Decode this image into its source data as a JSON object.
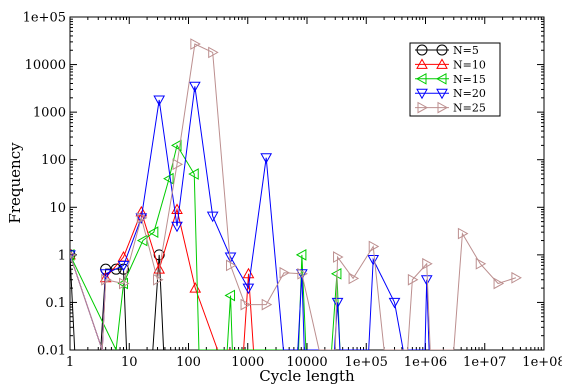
{
  "chart_data": {
    "type": "line",
    "xlabel": "Cycle length",
    "ylabel": "Frequency",
    "x_scale": "log",
    "y_scale": "log",
    "xlim": [
      1,
      100000000
    ],
    "ylim": [
      0.01,
      100000
    ],
    "x_tick_labels": [
      "1",
      "10",
      "100",
      "1000",
      "10000",
      "1e+05",
      "1e+06",
      "1e+07",
      "1e+08"
    ],
    "y_tick_labels": [
      "0.01",
      "0.1",
      "1",
      "10",
      "100",
      "1000",
      "10000",
      "1e+05"
    ],
    "legend_position": "top-right",
    "grid": false,
    "series": [
      {
        "name": "N=5",
        "color": "#000000",
        "marker": "circle",
        "points": [
          [
            1,
            1
          ],
          [
            1.2,
            0.01
          ],
          [
            3.3,
            0.01
          ],
          [
            4,
            0.5
          ],
          [
            6,
            0.5
          ],
          [
            8,
            0.5
          ],
          [
            9,
            0.01
          ],
          [
            25,
            0.01
          ],
          [
            32,
            1
          ],
          [
            38,
            0.01
          ]
        ]
      },
      {
        "name": "N=10",
        "color": "#ff0000",
        "marker": "triangle-up",
        "points": [
          [
            1,
            1
          ],
          [
            3.5,
            0.01
          ],
          [
            4,
            0.33
          ],
          [
            8,
            0.9
          ],
          [
            16,
            8
          ],
          [
            32,
            0.5
          ],
          [
            64,
            9
          ],
          [
            130,
            0.2
          ],
          [
            310,
            0.01
          ],
          [
            850,
            0.01
          ],
          [
            1030,
            0.4
          ],
          [
            1250,
            0.01
          ]
        ]
      },
      {
        "name": "N=15",
        "color": "#00cc00",
        "marker": "triangle-left",
        "points": [
          [
            1,
            1
          ],
          [
            6,
            0.01
          ],
          [
            8,
            0.25
          ],
          [
            17,
            2
          ],
          [
            26,
            3
          ],
          [
            47,
            40
          ],
          [
            64,
            200
          ],
          [
            125,
            50
          ],
          [
            150,
            0.01
          ],
          [
            450,
            0.01
          ],
          [
            512,
            0.14
          ],
          [
            550,
            0.01
          ],
          [
            7200,
            0.01
          ],
          [
            8200,
            1
          ],
          [
            9600,
            0.01
          ],
          [
            26000,
            0.01
          ],
          [
            32000,
            0.4
          ],
          [
            36000,
            0.01
          ]
        ]
      },
      {
        "name": "N=20",
        "color": "#0000ff",
        "marker": "triangle-down",
        "points": [
          [
            1,
            1
          ],
          [
            3.5,
            0.01
          ],
          [
            4,
            0.4
          ],
          [
            8,
            0.6
          ],
          [
            16,
            6
          ],
          [
            32,
            1800
          ],
          [
            64,
            4
          ],
          [
            128,
            3500
          ],
          [
            256,
            6.5
          ],
          [
            512,
            0.9
          ],
          [
            1024,
            0.2
          ],
          [
            2048,
            110
          ],
          [
            4000,
            0.01
          ],
          [
            7000,
            0.01
          ],
          [
            8192,
            0.4
          ],
          [
            9000,
            0.01
          ],
          [
            29000,
            0.01
          ],
          [
            32768,
            0.1
          ],
          [
            36000,
            0.01
          ],
          [
            110000,
            0.01
          ],
          [
            131072,
            0.8
          ],
          [
            300000,
            0.1
          ],
          [
            420000,
            0.01
          ],
          [
            980000,
            0.01
          ],
          [
            1048576,
            0.3
          ],
          [
            1150000,
            0.01
          ]
        ]
      },
      {
        "name": "N=25",
        "color": "#bc8f8f",
        "marker": "triangle-right",
        "points": [
          [
            1,
            1
          ],
          [
            3.5,
            0.01
          ],
          [
            4,
            0.3
          ],
          [
            8,
            0.25
          ],
          [
            16,
            6
          ],
          [
            30,
            0.3
          ],
          [
            64,
            80
          ],
          [
            128,
            27000
          ],
          [
            256,
            18000
          ],
          [
            512,
            0.6
          ],
          [
            900,
            0.09
          ],
          [
            2048,
            0.09
          ],
          [
            4096,
            0.42
          ],
          [
            8192,
            0.4
          ],
          [
            16000,
            0.01
          ],
          [
            30000,
            0.01
          ],
          [
            32768,
            0.9
          ],
          [
            60000,
            0.32
          ],
          [
            131072,
            1.5
          ],
          [
            200000,
            0.01
          ],
          [
            500000,
            0.01
          ],
          [
            600000,
            0.3
          ],
          [
            1048576,
            0.65
          ],
          [
            1200000,
            0.01
          ],
          [
            3000000,
            0.01
          ],
          [
            4194304,
            2.8
          ],
          [
            8388608,
            0.65
          ],
          [
            16777216,
            0.25
          ],
          [
            33554432,
            0.33
          ]
        ]
      }
    ]
  }
}
